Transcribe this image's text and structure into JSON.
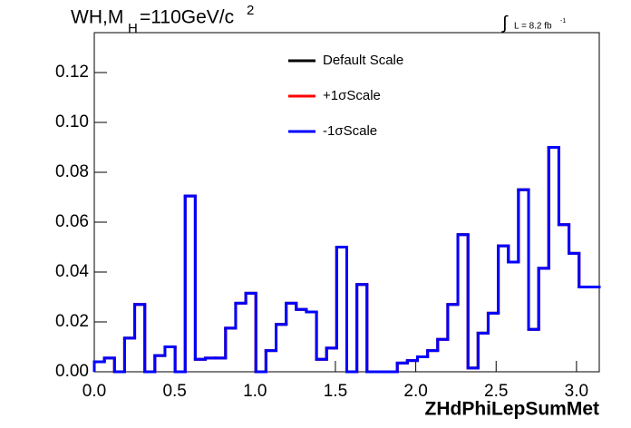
{
  "chart_data": {
    "type": "histogram",
    "title_parts": [
      "WH,M",
      "H",
      "=110GeV/c",
      "2"
    ],
    "annotation_parts": [
      "∫",
      "L = 8.2 fb",
      "-1"
    ],
    "x_label": "ZHdPhiLepSumMet",
    "bins": [
      0,
      0.0628,
      0.1257,
      0.1885,
      0.2513,
      0.3142,
      0.377,
      0.4398,
      0.5027,
      0.5655,
      0.6283,
      0.6912,
      0.754,
      0.8168,
      0.8796,
      0.9425,
      1.0053,
      1.0681,
      1.131,
      1.1938,
      1.2566,
      1.3195,
      1.3823,
      1.4451,
      1.508,
      1.5708,
      1.6336,
      1.6965,
      1.7593,
      1.8221,
      1.885,
      1.9478,
      2.0106,
      2.0735,
      2.1363,
      2.1991,
      2.2619,
      2.3248,
      2.3876,
      2.4504,
      2.5133,
      2.5761,
      2.6389,
      2.7018,
      2.7646,
      2.8274,
      2.8903,
      2.9531,
      3.0159,
      3.0788,
      3.1416
    ],
    "series": [
      {
        "name": "Default Scale",
        "color": "#000000",
        "values": [
          0.004,
          0.0055,
          0,
          0.0135,
          0.027,
          0,
          0.0065,
          0.01,
          0,
          0.0705,
          0.005,
          0.0055,
          0.0055,
          0.0175,
          0.0275,
          0.0315,
          0,
          0.0085,
          0.019,
          0.0275,
          0.025,
          0.024,
          0.005,
          0.0095,
          0.05,
          0,
          0.035,
          0,
          0,
          0,
          0.0035,
          0.0045,
          0.006,
          0.0085,
          0.013,
          0.027,
          0.055,
          0.0015,
          0.0155,
          0.0235,
          0.0505,
          0.044,
          0.073,
          0.017,
          0.0415,
          0.09,
          0.059,
          0.0475,
          0.034,
          0.034
        ]
      },
      {
        "name": "+1σScale",
        "color": "#ff0000",
        "values": [
          0.004,
          0.0055,
          0,
          0.0135,
          0.027,
          0,
          0.0065,
          0.01,
          0,
          0.0705,
          0.005,
          0.0055,
          0.0055,
          0.0175,
          0.0275,
          0.0315,
          0,
          0.0085,
          0.019,
          0.0275,
          0.025,
          0.024,
          0.005,
          0.0095,
          0.05,
          0,
          0.035,
          0,
          0,
          0,
          0.0035,
          0.0045,
          0.006,
          0.0085,
          0.013,
          0.027,
          0.055,
          0.0015,
          0.0155,
          0.0235,
          0.0505,
          0.044,
          0.073,
          0.017,
          0.0415,
          0.09,
          0.059,
          0.0475,
          0.034,
          0.034
        ]
      },
      {
        "name": "-1σScale",
        "color": "#0000ff",
        "values": [
          0.004,
          0.0055,
          0,
          0.0135,
          0.027,
          0,
          0.0065,
          0.01,
          0,
          0.0705,
          0.005,
          0.0055,
          0.0055,
          0.0175,
          0.0275,
          0.0315,
          0,
          0.0085,
          0.019,
          0.0275,
          0.025,
          0.024,
          0.005,
          0.0095,
          0.05,
          0,
          0.035,
          0,
          0,
          0,
          0.0035,
          0.0045,
          0.006,
          0.0085,
          0.013,
          0.027,
          0.055,
          0.0015,
          0.0155,
          0.0235,
          0.0505,
          0.044,
          0.073,
          0.017,
          0.0415,
          0.09,
          0.059,
          0.0475,
          0.034,
          0.034
        ]
      }
    ],
    "xlim": [
      0,
      3.1416
    ],
    "ylim": [
      0,
      0.136
    ],
    "xticks": [
      {
        "value": 0,
        "label": "0.0"
      },
      {
        "value": 0.5,
        "label": "0.5"
      },
      {
        "value": 1,
        "label": "1.0"
      },
      {
        "value": 1.5,
        "label": "1.5"
      },
      {
        "value": 2,
        "label": "2.0"
      },
      {
        "value": 2.5,
        "label": "2.5"
      },
      {
        "value": 3,
        "label": "3.0"
      }
    ],
    "yticks": [
      {
        "value": 0,
        "label": "0.00"
      },
      {
        "value": 0.02,
        "label": "0.02"
      },
      {
        "value": 0.04,
        "label": "0.04"
      },
      {
        "value": 0.06,
        "label": "0.06"
      },
      {
        "value": 0.08,
        "label": "0.08"
      },
      {
        "value": 0.1,
        "label": "0.10"
      },
      {
        "value": 0.12,
        "label": "0.12"
      }
    ],
    "grid": false
  }
}
